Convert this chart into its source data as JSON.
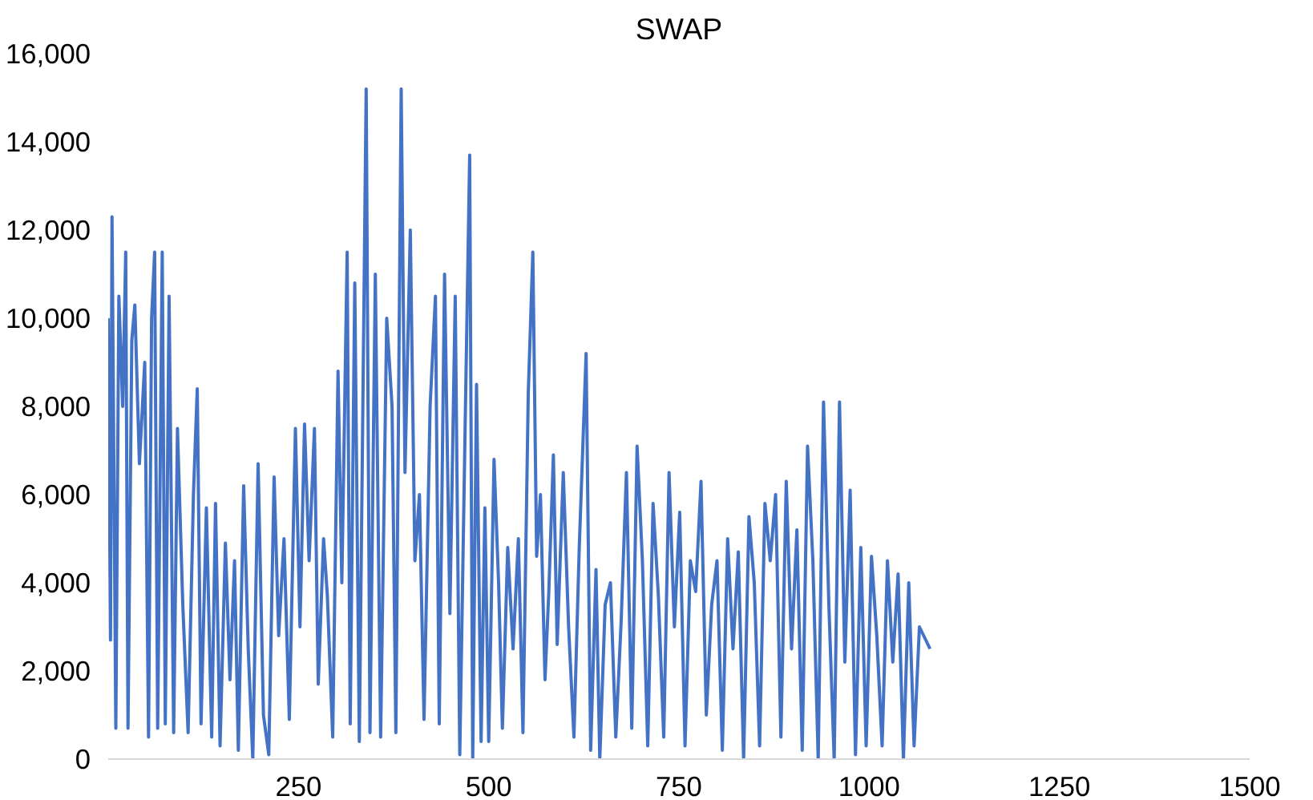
{
  "chart_data": {
    "type": "line",
    "title": "SWAP",
    "xlim": [
      0,
      1500
    ],
    "xticks": [
      250,
      500,
      750,
      1000,
      1250,
      1500
    ],
    "ylim": [
      0,
      16000
    ],
    "yticks": [
      {
        "value": 0,
        "label": "0"
      },
      {
        "value": 2000,
        "label": "2,000"
      },
      {
        "value": 4000,
        "label": "4,000"
      },
      {
        "value": 6000,
        "label": "6,000"
      },
      {
        "value": 8000,
        "label": "8,000"
      },
      {
        "value": 10000,
        "label": "10,000"
      },
      {
        "value": 12000,
        "label": "12,000"
      },
      {
        "value": 14000,
        "label": "14,000"
      },
      {
        "value": 16000,
        "label": "16,000"
      }
    ],
    "grid": false,
    "series": [
      {
        "color": "#4472c4",
        "x": [
          0,
          3,
          5,
          10,
          14,
          19,
          23,
          26,
          31,
          35,
          41,
          48,
          53,
          57,
          61,
          65,
          71,
          75,
          80,
          86,
          91,
          98,
          105,
          112,
          117,
          122,
          129,
          136,
          141,
          147,
          154,
          160,
          166,
          171,
          178,
          184,
          190,
          197,
          204,
          211,
          218,
          224,
          231,
          238,
          246,
          252,
          258,
          264,
          271,
          276,
          283,
          288,
          295,
          302,
          307,
          314,
          318,
          324,
          330,
          339,
          344,
          351,
          358,
          366,
          373,
          378,
          385,
          390,
          397,
          403,
          409,
          415,
          423,
          430,
          435,
          442,
          449,
          456,
          462,
          469,
          475,
          479,
          484,
          490,
          495,
          500,
          507,
          513,
          518,
          525,
          532,
          539,
          545,
          552,
          558,
          563,
          568,
          574,
          579,
          585,
          590,
          598,
          605,
          612,
          619,
          628,
          634,
          641,
          646,
          653,
          660,
          667,
          674,
          681,
          688,
          695,
          702,
          709,
          716,
          723,
          730,
          737,
          744,
          751,
          758,
          765,
          772,
          779,
          786,
          793,
          800,
          807,
          814,
          821,
          828,
          835,
          842,
          849,
          856,
          863,
          870,
          877,
          884,
          891,
          898,
          905,
          912,
          919,
          926,
          933,
          940,
          947,
          954,
          961,
          968,
          975,
          982,
          989,
          996,
          1003,
          1010,
          1017,
          1024,
          1031,
          1038,
          1045,
          1052,
          1059,
          1066,
          1080
        ],
        "values": [
          10000,
          2700,
          12300,
          700,
          10500,
          8000,
          11500,
          700,
          9500,
          10300,
          6700,
          9000,
          500,
          10000,
          11500,
          700,
          11500,
          800,
          10500,
          600,
          7500,
          3500,
          600,
          6000,
          8400,
          800,
          5700,
          500,
          5800,
          300,
          4900,
          1800,
          4500,
          200,
          6200,
          2500,
          0,
          6700,
          1000,
          100,
          6400,
          2800,
          5000,
          900,
          7500,
          3000,
          7600,
          4500,
          7500,
          1700,
          5000,
          3700,
          500,
          8800,
          4000,
          11500,
          800,
          10800,
          400,
          15200,
          600,
          11000,
          500,
          10000,
          8000,
          600,
          15200,
          6500,
          12000,
          4500,
          6000,
          900,
          8000,
          10500,
          800,
          11000,
          3300,
          10500,
          100,
          7500,
          13700,
          0,
          8500,
          400,
          5700,
          400,
          6800,
          4000,
          700,
          4800,
          2500,
          5000,
          600,
          8300,
          11500,
          4600,
          6000,
          1800,
          3800,
          6900,
          2600,
          6500,
          3000,
          500,
          4800,
          9200,
          200,
          4300,
          0,
          3500,
          4000,
          500,
          3100,
          6500,
          700,
          7100,
          4500,
          300,
          5800,
          3700,
          500,
          6500,
          3000,
          5600,
          300,
          4500,
          3800,
          6300,
          1000,
          3500,
          4500,
          200,
          5000,
          2500,
          4700,
          0,
          5500,
          4000,
          300,
          5800,
          4500,
          6000,
          500,
          6300,
          2500,
          5200,
          200,
          7100,
          4500,
          0,
          8100,
          3500,
          0,
          8100,
          2200,
          6100,
          100,
          4800,
          300,
          4600,
          2800,
          300,
          4500,
          2200,
          4200,
          0,
          4000,
          300,
          3000,
          2500
        ]
      }
    ]
  }
}
